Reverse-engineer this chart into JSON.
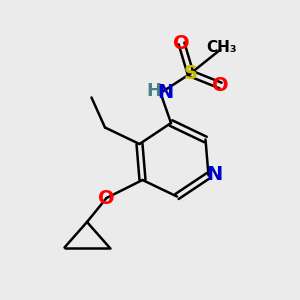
{
  "background_color": "#ebebeb",
  "bond_color": "#000000",
  "bond_width": 1.8,
  "atom_colors": {
    "N": "#0000cc",
    "O": "#ff0000",
    "S": "#ccbb00",
    "C": "#000000",
    "H": "#4a8080"
  },
  "font_size_atoms": 14,
  "font_size_methyl": 11,
  "figsize": [
    3.0,
    3.0
  ],
  "dpi": 100
}
